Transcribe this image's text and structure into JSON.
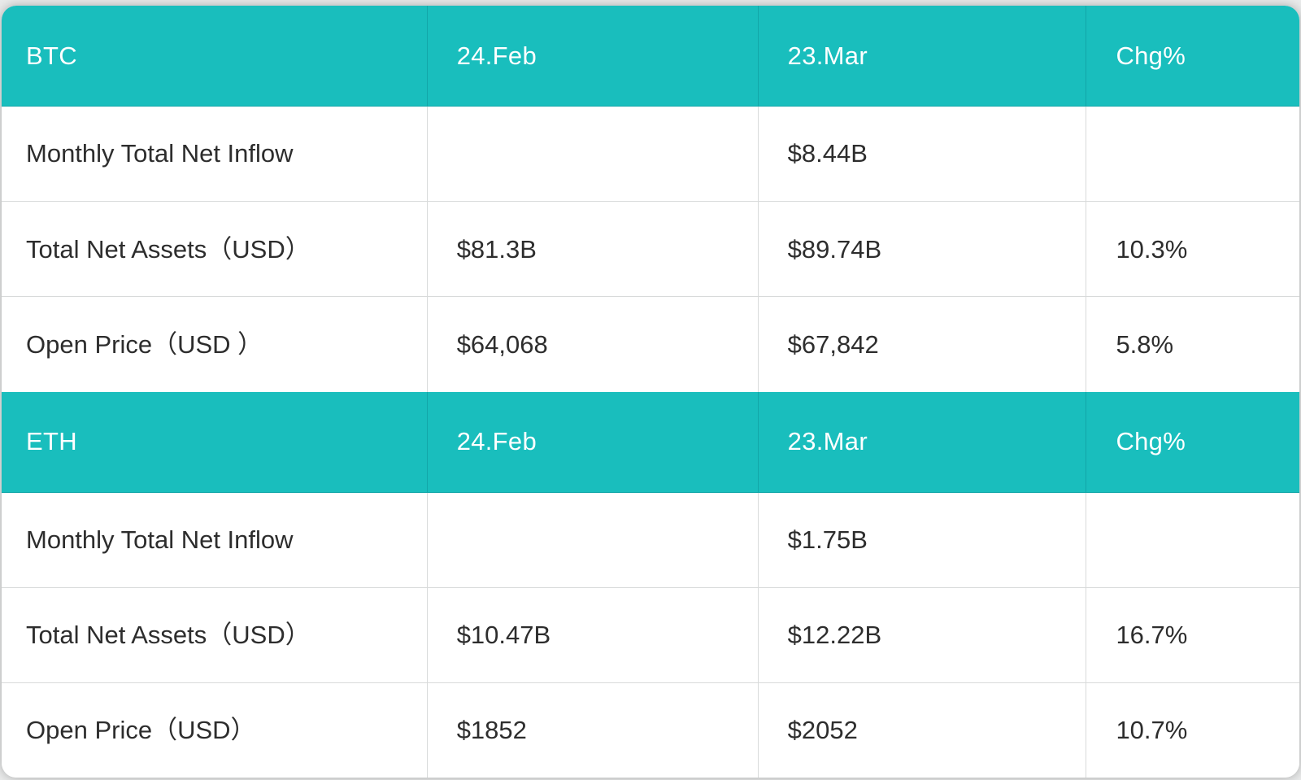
{
  "colors": {
    "header_background": "#19bebd",
    "header_divider": "#12a6a8",
    "grid_line": "#d8dada",
    "text": "#2d2d2d",
    "header_text": "#ffffff",
    "page_background": "#e9eaea"
  },
  "chart_data": [
    {
      "type": "table",
      "title": "BTC",
      "columns": [
        "BTC",
        "24.Feb",
        "23.Mar",
        "Chg%"
      ],
      "rows": [
        [
          "Monthly Total Net Inflow",
          "",
          "$8.44B",
          ""
        ],
        [
          "Total Net Assets（USD）",
          "$81.3B",
          "$89.74B",
          "10.3%"
        ],
        [
          "Open Price（USD ）",
          "$64,068",
          "$67,842",
          "5.8%"
        ]
      ]
    },
    {
      "type": "table",
      "title": "ETH",
      "columns": [
        "ETH",
        "24.Feb",
        "23.Mar",
        "Chg%"
      ],
      "rows": [
        [
          "Monthly Total Net Inflow",
          "",
          "$1.75B",
          ""
        ],
        [
          "Total Net Assets（USD）",
          "$10.47B",
          "$12.22B",
          "16.7%"
        ],
        [
          "Open Price（USD）",
          "$1852",
          "$2052",
          "10.7%"
        ]
      ]
    }
  ]
}
